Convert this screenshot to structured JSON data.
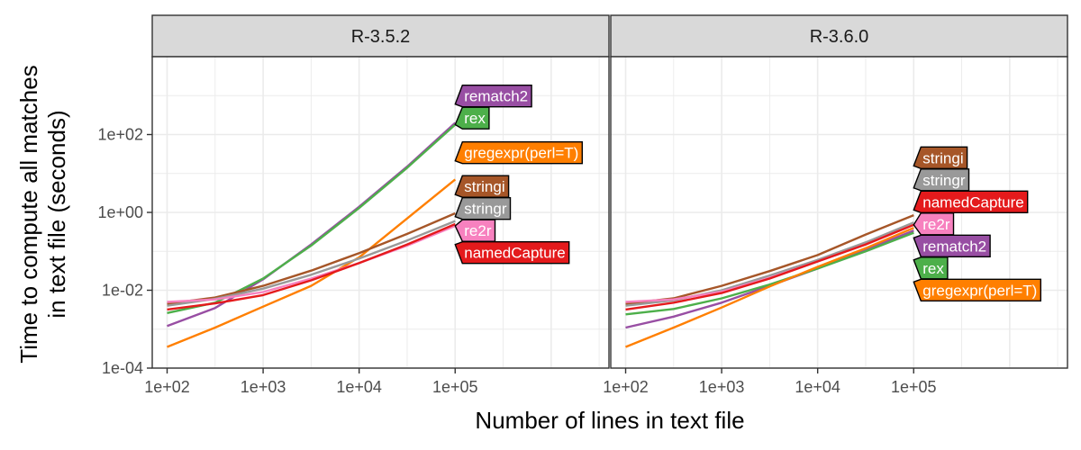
{
  "chart_data": {
    "type": "line",
    "xlabel": "Number of lines in text file",
    "ylabel_lines": [
      "Time to compute all matches",
      "in text file (seconds)"
    ],
    "x_scale": "log10",
    "y_scale": "log10",
    "xlim": [
      70,
      4000000
    ],
    "ylim": [
      0.0001,
      10000
    ],
    "x_ticks": [
      100,
      1000,
      10000,
      100000
    ],
    "x_tick_labels": [
      "1e+02",
      "1e+03",
      "1e+04",
      "1e+05"
    ],
    "y_ticks": [
      0.0001,
      0.01,
      1,
      100
    ],
    "y_tick_labels": [
      "1e-04",
      "1e-02",
      "1e+00",
      "1e+02"
    ],
    "grid": true,
    "colors": {
      "rematch2": "#984ea3",
      "rex": "#4daf4a",
      "gregexpr(perl=T)": "#ff7f00",
      "stringi": "#a65628",
      "stringr": "#999999",
      "re2r": "#f781bf",
      "namedCapture": "#e41a1c"
    },
    "panels": [
      {
        "title": "R-3.5.2",
        "series": [
          {
            "name": "rematch2",
            "x": [
              100,
              316,
              1000,
              3162,
              10000,
              31623,
              100000
            ],
            "y": [
              0.0012,
              0.0035,
              0.019,
              0.15,
              1.4,
              15,
              200
            ]
          },
          {
            "name": "rex",
            "x": [
              100,
              316,
              1000,
              3162,
              10000,
              31623,
              100000
            ],
            "y": [
              0.0026,
              0.0048,
              0.02,
              0.14,
              1.3,
              14,
              180
            ]
          },
          {
            "name": "gregexpr(perl=T)",
            "x": [
              100,
              316,
              1000,
              3162,
              10000,
              31623,
              100000
            ],
            "y": [
              0.00035,
              0.0011,
              0.0038,
              0.013,
              0.07,
              0.7,
              7
            ]
          },
          {
            "name": "stringi",
            "x": [
              100,
              316,
              1000,
              3162,
              10000,
              31623,
              100000
            ],
            "y": [
              0.0045,
              0.0065,
              0.013,
              0.032,
              0.09,
              0.28,
              0.95
            ]
          },
          {
            "name": "stringr",
            "x": [
              100,
              316,
              1000,
              3162,
              10000,
              31623,
              100000
            ],
            "y": [
              0.004,
              0.006,
              0.011,
              0.025,
              0.065,
              0.19,
              0.6
            ]
          },
          {
            "name": "re2r",
            "x": [
              100,
              316,
              1000,
              3162,
              10000,
              31623,
              100000
            ],
            "y": [
              0.005,
              0.0058,
              0.009,
              0.02,
              0.05,
              0.14,
              0.45
            ]
          },
          {
            "name": "namedCapture",
            "x": [
              100,
              316,
              1000,
              3162,
              10000,
              31623,
              100000
            ],
            "y": [
              0.0032,
              0.0046,
              0.0075,
              0.018,
              0.05,
              0.15,
              0.5
            ]
          }
        ],
        "labels": [
          "rematch2",
          "rex",
          "gregexpr(perl=T)",
          "stringi",
          "stringr",
          "re2r",
          "namedCapture"
        ]
      },
      {
        "title": "R-3.6.0",
        "series": [
          {
            "name": "rematch2",
            "x": [
              100,
              316,
              1000,
              3162,
              10000,
              31623,
              100000
            ],
            "y": [
              0.0011,
              0.0021,
              0.0048,
              0.013,
              0.036,
              0.11,
              0.34
            ]
          },
          {
            "name": "rex",
            "x": [
              100,
              316,
              1000,
              3162,
              10000,
              31623,
              100000
            ],
            "y": [
              0.0024,
              0.0033,
              0.0062,
              0.014,
              0.036,
              0.1,
              0.3
            ]
          },
          {
            "name": "gregexpr(perl=T)",
            "x": [
              100,
              316,
              1000,
              3162,
              10000,
              31623,
              100000
            ],
            "y": [
              0.00035,
              0.0011,
              0.0036,
              0.0125,
              0.04,
              0.12,
              0.4
            ]
          },
          {
            "name": "stringi",
            "x": [
              100,
              316,
              1000,
              3162,
              10000,
              31623,
              100000
            ],
            "y": [
              0.0045,
              0.0062,
              0.013,
              0.031,
              0.08,
              0.27,
              0.85
            ]
          },
          {
            "name": "stringr",
            "x": [
              100,
              316,
              1000,
              3162,
              10000,
              31623,
              100000
            ],
            "y": [
              0.004,
              0.0055,
              0.01,
              0.024,
              0.06,
              0.17,
              0.55
            ]
          },
          {
            "name": "re2r",
            "x": [
              100,
              316,
              1000,
              3162,
              10000,
              31623,
              100000
            ],
            "y": [
              0.005,
              0.0058,
              0.0092,
              0.021,
              0.055,
              0.15,
              0.48
            ]
          },
          {
            "name": "namedCapture",
            "x": [
              100,
              316,
              1000,
              3162,
              10000,
              31623,
              100000
            ],
            "y": [
              0.0032,
              0.0048,
              0.0085,
              0.02,
              0.055,
              0.15,
              0.48
            ]
          }
        ],
        "labels": [
          "stringi",
          "stringr",
          "namedCapture",
          "re2r",
          "rematch2",
          "rex",
          "gregexpr(perl=T)"
        ]
      }
    ]
  }
}
